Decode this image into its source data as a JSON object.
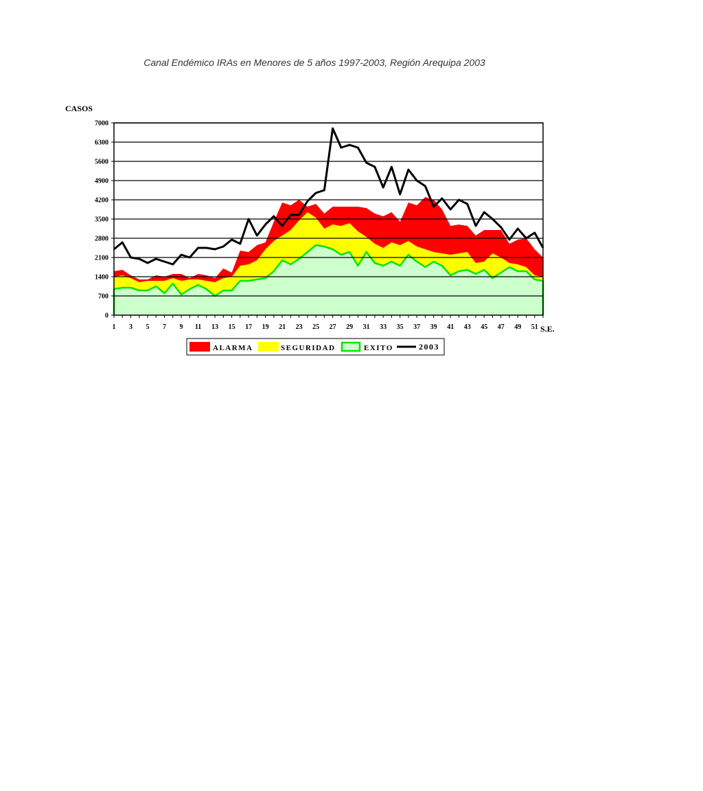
{
  "chart_data": {
    "type": "area",
    "title": "Canal Endémico IRAs en Menores de 5 años 1997-2003, Región  Arequipa 2003",
    "ylabel": "CASOS",
    "xlabel": "S.E.",
    "ylim": [
      0,
      7000
    ],
    "yticks": [
      0,
      700,
      1400,
      2100,
      2800,
      3500,
      4200,
      4900,
      5600,
      6300,
      7000
    ],
    "x": [
      1,
      2,
      3,
      4,
      5,
      6,
      7,
      8,
      9,
      10,
      11,
      12,
      13,
      14,
      15,
      16,
      17,
      18,
      19,
      20,
      21,
      22,
      23,
      24,
      25,
      26,
      27,
      28,
      29,
      30,
      31,
      32,
      33,
      34,
      35,
      36,
      37,
      38,
      39,
      40,
      41,
      42,
      43,
      44,
      45,
      46,
      47,
      48,
      49,
      50,
      51,
      52
    ],
    "xtick_labels": [
      "1",
      "3",
      "5",
      "7",
      "9",
      "11",
      "13",
      "15",
      "17",
      "19",
      "21",
      "23",
      "25",
      "27",
      "29",
      "31",
      "33",
      "35",
      "37",
      "39",
      "41",
      "43",
      "45",
      "47",
      "49",
      "51"
    ],
    "grid": true,
    "legend_position": "bottom",
    "colors": {
      "alarma": "#ff0000",
      "seguridad": "#ffff00",
      "exito_fill": "#ccffcc",
      "exito_line": "#00e600",
      "line_2003": "#000000",
      "grid": "#000000"
    },
    "series": [
      {
        "name": "ALARMA",
        "kind": "area",
        "values": [
          1600,
          1650,
          1450,
          1300,
          1300,
          1450,
          1400,
          1500,
          1500,
          1350,
          1500,
          1450,
          1350,
          1700,
          1550,
          2350,
          2300,
          2550,
          2650,
          3400,
          4100,
          4000,
          4200,
          3950,
          4050,
          3700,
          3950,
          3950,
          3950,
          3950,
          3900,
          3700,
          3600,
          3750,
          3400,
          4100,
          4000,
          4300,
          4200,
          3850,
          3250,
          3300,
          3250,
          2900,
          3100,
          3100,
          3100,
          2600,
          2750,
          2800,
          2400,
          2100
        ]
      },
      {
        "name": "SEGURIDAD",
        "kind": "area",
        "values": [
          1400,
          1450,
          1350,
          1200,
          1250,
          1250,
          1250,
          1350,
          1250,
          1300,
          1300,
          1250,
          1200,
          1350,
          1400,
          1800,
          1850,
          2000,
          2400,
          2700,
          2900,
          3100,
          3450,
          3750,
          3550,
          3150,
          3300,
          3250,
          3350,
          3050,
          2850,
          2600,
          2450,
          2650,
          2550,
          2700,
          2500,
          2400,
          2300,
          2250,
          2200,
          2250,
          2300,
          1900,
          1950,
          2250,
          2100,
          1900,
          1850,
          1750,
          1450,
          1400
        ]
      },
      {
        "name": "EXITO",
        "kind": "area",
        "values": [
          950,
          1000,
          1000,
          900,
          900,
          1050,
          800,
          1150,
          750,
          950,
          1100,
          950,
          700,
          900,
          900,
          1250,
          1250,
          1300,
          1350,
          1600,
          2000,
          1850,
          2050,
          2300,
          2550,
          2500,
          2400,
          2200,
          2300,
          1800,
          2300,
          1900,
          1800,
          1950,
          1800,
          2200,
          1950,
          1750,
          1950,
          1800,
          1450,
          1600,
          1650,
          1500,
          1650,
          1350,
          1550,
          1750,
          1600,
          1600,
          1300,
          1250
        ]
      },
      {
        "name": "2003",
        "kind": "line",
        "values": [
          2400,
          2650,
          2100,
          2050,
          1900,
          2050,
          1950,
          1850,
          2200,
          2100,
          2450,
          2450,
          2400,
          2500,
          2750,
          2600,
          3500,
          2900,
          3300,
          3600,
          3250,
          3650,
          3650,
          4150,
          4450,
          4550,
          6800,
          6100,
          6200,
          6100,
          5550,
          5400,
          4650,
          5400,
          4400,
          5300,
          4900,
          4700,
          3950,
          4250,
          3850,
          4200,
          4050,
          3250,
          3750,
          3500,
          3200,
          2750,
          3150,
          2800,
          3000,
          2450
        ]
      }
    ]
  }
}
